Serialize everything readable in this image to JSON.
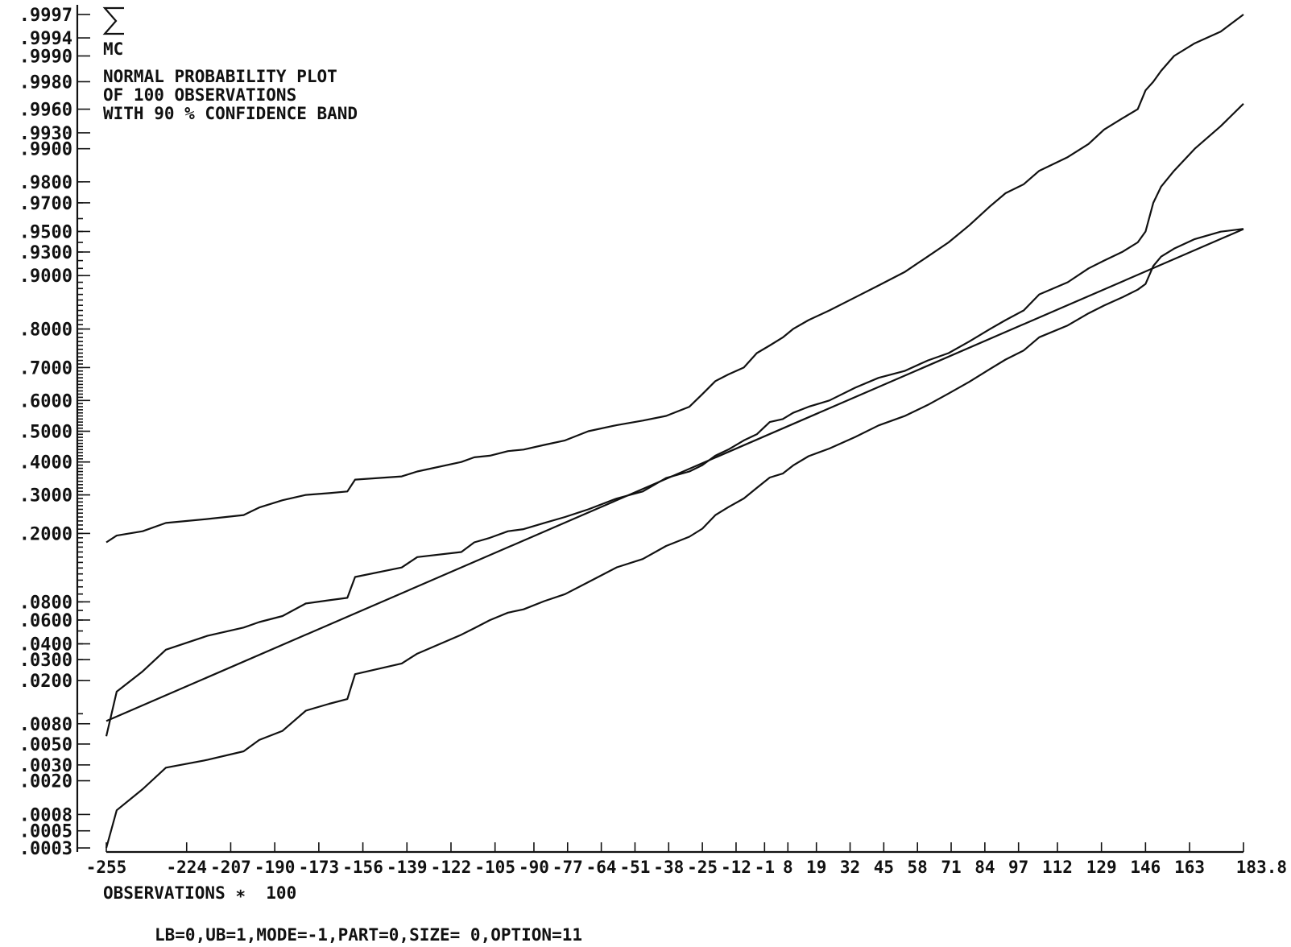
{
  "chart_data": {
    "type": "line",
    "title": "NORMAL PROBABILITY PLOT",
    "title_lines": [
      "NORMAL PROBABILITY PLOT",
      "OF 100 OBSERVATIONS",
      "WITH 90 % CONFIDENCE BAND"
    ],
    "logo_text": "MC",
    "xlabel": "OBSERVATIONS ∗  100",
    "footer": "LB=0,UB=1,MODE=-1,PART=0,SIZE= 0,OPTION=11",
    "x_ticks": [
      "-255",
      "-224",
      "-207",
      "-190",
      "-173",
      "-156",
      "-139",
      "-122",
      "-105",
      "-90",
      "-77",
      "-64",
      "-51",
      "-38",
      "-25",
      "-12",
      "-1",
      "8",
      "19",
      "32",
      "45",
      "58",
      "71",
      "84",
      "97",
      "112",
      "129",
      "146",
      "163",
      "183.8"
    ],
    "x_tick_values": [
      -255,
      -224,
      -207,
      -190,
      -173,
      -156,
      -139,
      -122,
      -105,
      -90,
      -77,
      -64,
      -51,
      -38,
      -25,
      -12,
      -1,
      8,
      19,
      32,
      45,
      58,
      71,
      84,
      97,
      112,
      129,
      146,
      163,
      183.8
    ],
    "y_scale": "normal-probability",
    "y_ticks": [
      ".9997",
      ".9994",
      ".9990",
      ".9980",
      ".9960",
      ".9930",
      ".9900",
      ".9800",
      ".9700",
      ".9500",
      ".9300",
      ".9000",
      ".8000",
      ".7000",
      ".6000",
      ".5000",
      ".4000",
      ".3000",
      ".2000",
      ".0800",
      ".0600",
      ".0400",
      ".0300",
      ".0200",
      ".0080",
      ".0050",
      ".0030",
      ".0020",
      ".0008",
      ".0005",
      ".0003"
    ],
    "y_tick_values": [
      0.9997,
      0.9994,
      0.999,
      0.998,
      0.996,
      0.993,
      0.99,
      0.98,
      0.97,
      0.95,
      0.93,
      0.9,
      0.8,
      0.7,
      0.6,
      0.5,
      0.4,
      0.3,
      0.2,
      0.08,
      0.06,
      0.04,
      0.03,
      0.02,
      0.008,
      0.005,
      0.003,
      0.002,
      0.0008,
      0.0005,
      0.0003
    ],
    "series": [
      {
        "role": "fitted-line",
        "x": [
          -255,
          183.8
        ],
        "y": [
          0.0085,
          0.952
        ]
      },
      {
        "role": "empirical-cdf",
        "x": [
          -255,
          -251,
          -241,
          -232,
          -216,
          -202,
          -196,
          -187,
          -178,
          -169,
          -162,
          -159,
          -141,
          -135,
          -118,
          -113,
          -107,
          -100,
          -94,
          -86,
          -78,
          -69,
          -58,
          -48,
          -39,
          -30,
          -25,
          -20,
          -15,
          -9,
          -4,
          1,
          6,
          10,
          16,
          24,
          34,
          43,
          53,
          62,
          70,
          78,
          86,
          92,
          99,
          105,
          116,
          124,
          130,
          137,
          143,
          146,
          149,
          152,
          157,
          165,
          175,
          183.8
        ],
        "y": [
          0.006,
          0.016,
          0.024,
          0.036,
          0.046,
          0.053,
          0.058,
          0.064,
          0.078,
          0.082,
          0.085,
          0.115,
          0.131,
          0.15,
          0.16,
          0.18,
          0.19,
          0.205,
          0.21,
          0.225,
          0.24,
          0.26,
          0.29,
          0.31,
          0.35,
          0.37,
          0.39,
          0.42,
          0.44,
          0.47,
          0.49,
          0.53,
          0.54,
          0.56,
          0.58,
          0.6,
          0.64,
          0.67,
          0.69,
          0.72,
          0.74,
          0.77,
          0.8,
          0.82,
          0.84,
          0.87,
          0.89,
          0.91,
          0.92,
          0.93,
          0.94,
          0.95,
          0.97,
          0.978,
          0.984,
          0.99,
          0.994,
          0.9965
        ]
      },
      {
        "role": "upper-confidence-band",
        "x": [
          -255,
          -251,
          -241,
          -232,
          -216,
          -202,
          -196,
          -187,
          -178,
          -169,
          -162,
          -159,
          -141,
          -135,
          -118,
          -113,
          -107,
          -100,
          -94,
          -86,
          -78,
          -69,
          -58,
          -48,
          -39,
          -30,
          -25,
          -20,
          -15,
          -9,
          -4,
          1,
          6,
          10,
          16,
          24,
          34,
          43,
          53,
          62,
          70,
          78,
          86,
          92,
          99,
          105,
          116,
          124,
          130,
          137,
          143,
          146,
          149,
          152,
          157,
          165,
          175,
          183.8
        ],
        "y": [
          0.18,
          0.195,
          0.205,
          0.225,
          0.235,
          0.245,
          0.265,
          0.285,
          0.3,
          0.305,
          0.31,
          0.345,
          0.355,
          0.37,
          0.4,
          0.415,
          0.42,
          0.435,
          0.44,
          0.455,
          0.47,
          0.5,
          0.52,
          0.535,
          0.55,
          0.58,
          0.62,
          0.66,
          0.68,
          0.7,
          0.74,
          0.76,
          0.78,
          0.8,
          0.82,
          0.84,
          0.865,
          0.885,
          0.905,
          0.925,
          0.94,
          0.955,
          0.968,
          0.975,
          0.979,
          0.984,
          0.988,
          0.991,
          0.9935,
          0.995,
          0.996,
          0.9975,
          0.998,
          0.9985,
          0.999,
          0.9993,
          0.9995,
          0.9997
        ]
      },
      {
        "role": "lower-confidence-band",
        "x": [
          -255,
          -251,
          -241,
          -232,
          -216,
          -202,
          -196,
          -187,
          -178,
          -169,
          -162,
          -159,
          -141,
          -135,
          -118,
          -113,
          -107,
          -100,
          -94,
          -86,
          -78,
          -69,
          -58,
          -48,
          -39,
          -30,
          -25,
          -20,
          -15,
          -9,
          -4,
          1,
          6,
          10,
          16,
          24,
          34,
          43,
          53,
          62,
          70,
          78,
          86,
          92,
          99,
          105,
          116,
          124,
          130,
          137,
          143,
          146,
          149,
          152,
          157,
          165,
          175,
          183.8
        ],
        "y": [
          0.0003,
          0.0009,
          0.0016,
          0.0028,
          0.0034,
          0.0042,
          0.0055,
          0.0068,
          0.0107,
          0.0124,
          0.0137,
          0.0227,
          0.0279,
          0.0335,
          0.0469,
          0.0524,
          0.0599,
          0.0676,
          0.0712,
          0.0809,
          0.0899,
          0.107,
          0.1312,
          0.1463,
          0.1724,
          0.1926,
          0.2112,
          0.2447,
          0.2659,
          0.2899,
          0.3204,
          0.3515,
          0.3635,
          0.3889,
          0.4185,
          0.4433,
          0.4812,
          0.5191,
          0.5497,
          0.5858,
          0.6219,
          0.6578,
          0.6958,
          0.7224,
          0.747,
          0.7805,
          0.8082,
          0.8342,
          0.8497,
          0.8648,
          0.8781,
          0.8874,
          0.9132,
          0.9247,
          0.9336,
          0.9432,
          0.9498,
          0.9522
        ]
      }
    ]
  }
}
